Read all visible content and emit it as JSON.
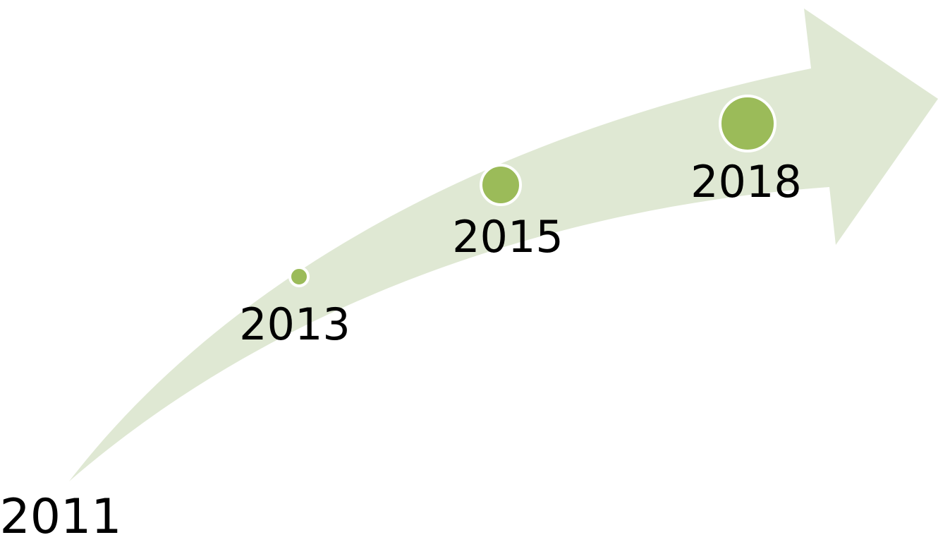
{
  "nodes": [
    {
      "label": "2011"
    },
    {
      "label": "2013"
    },
    {
      "label": "2015"
    },
    {
      "label": "2018"
    }
  ]
}
